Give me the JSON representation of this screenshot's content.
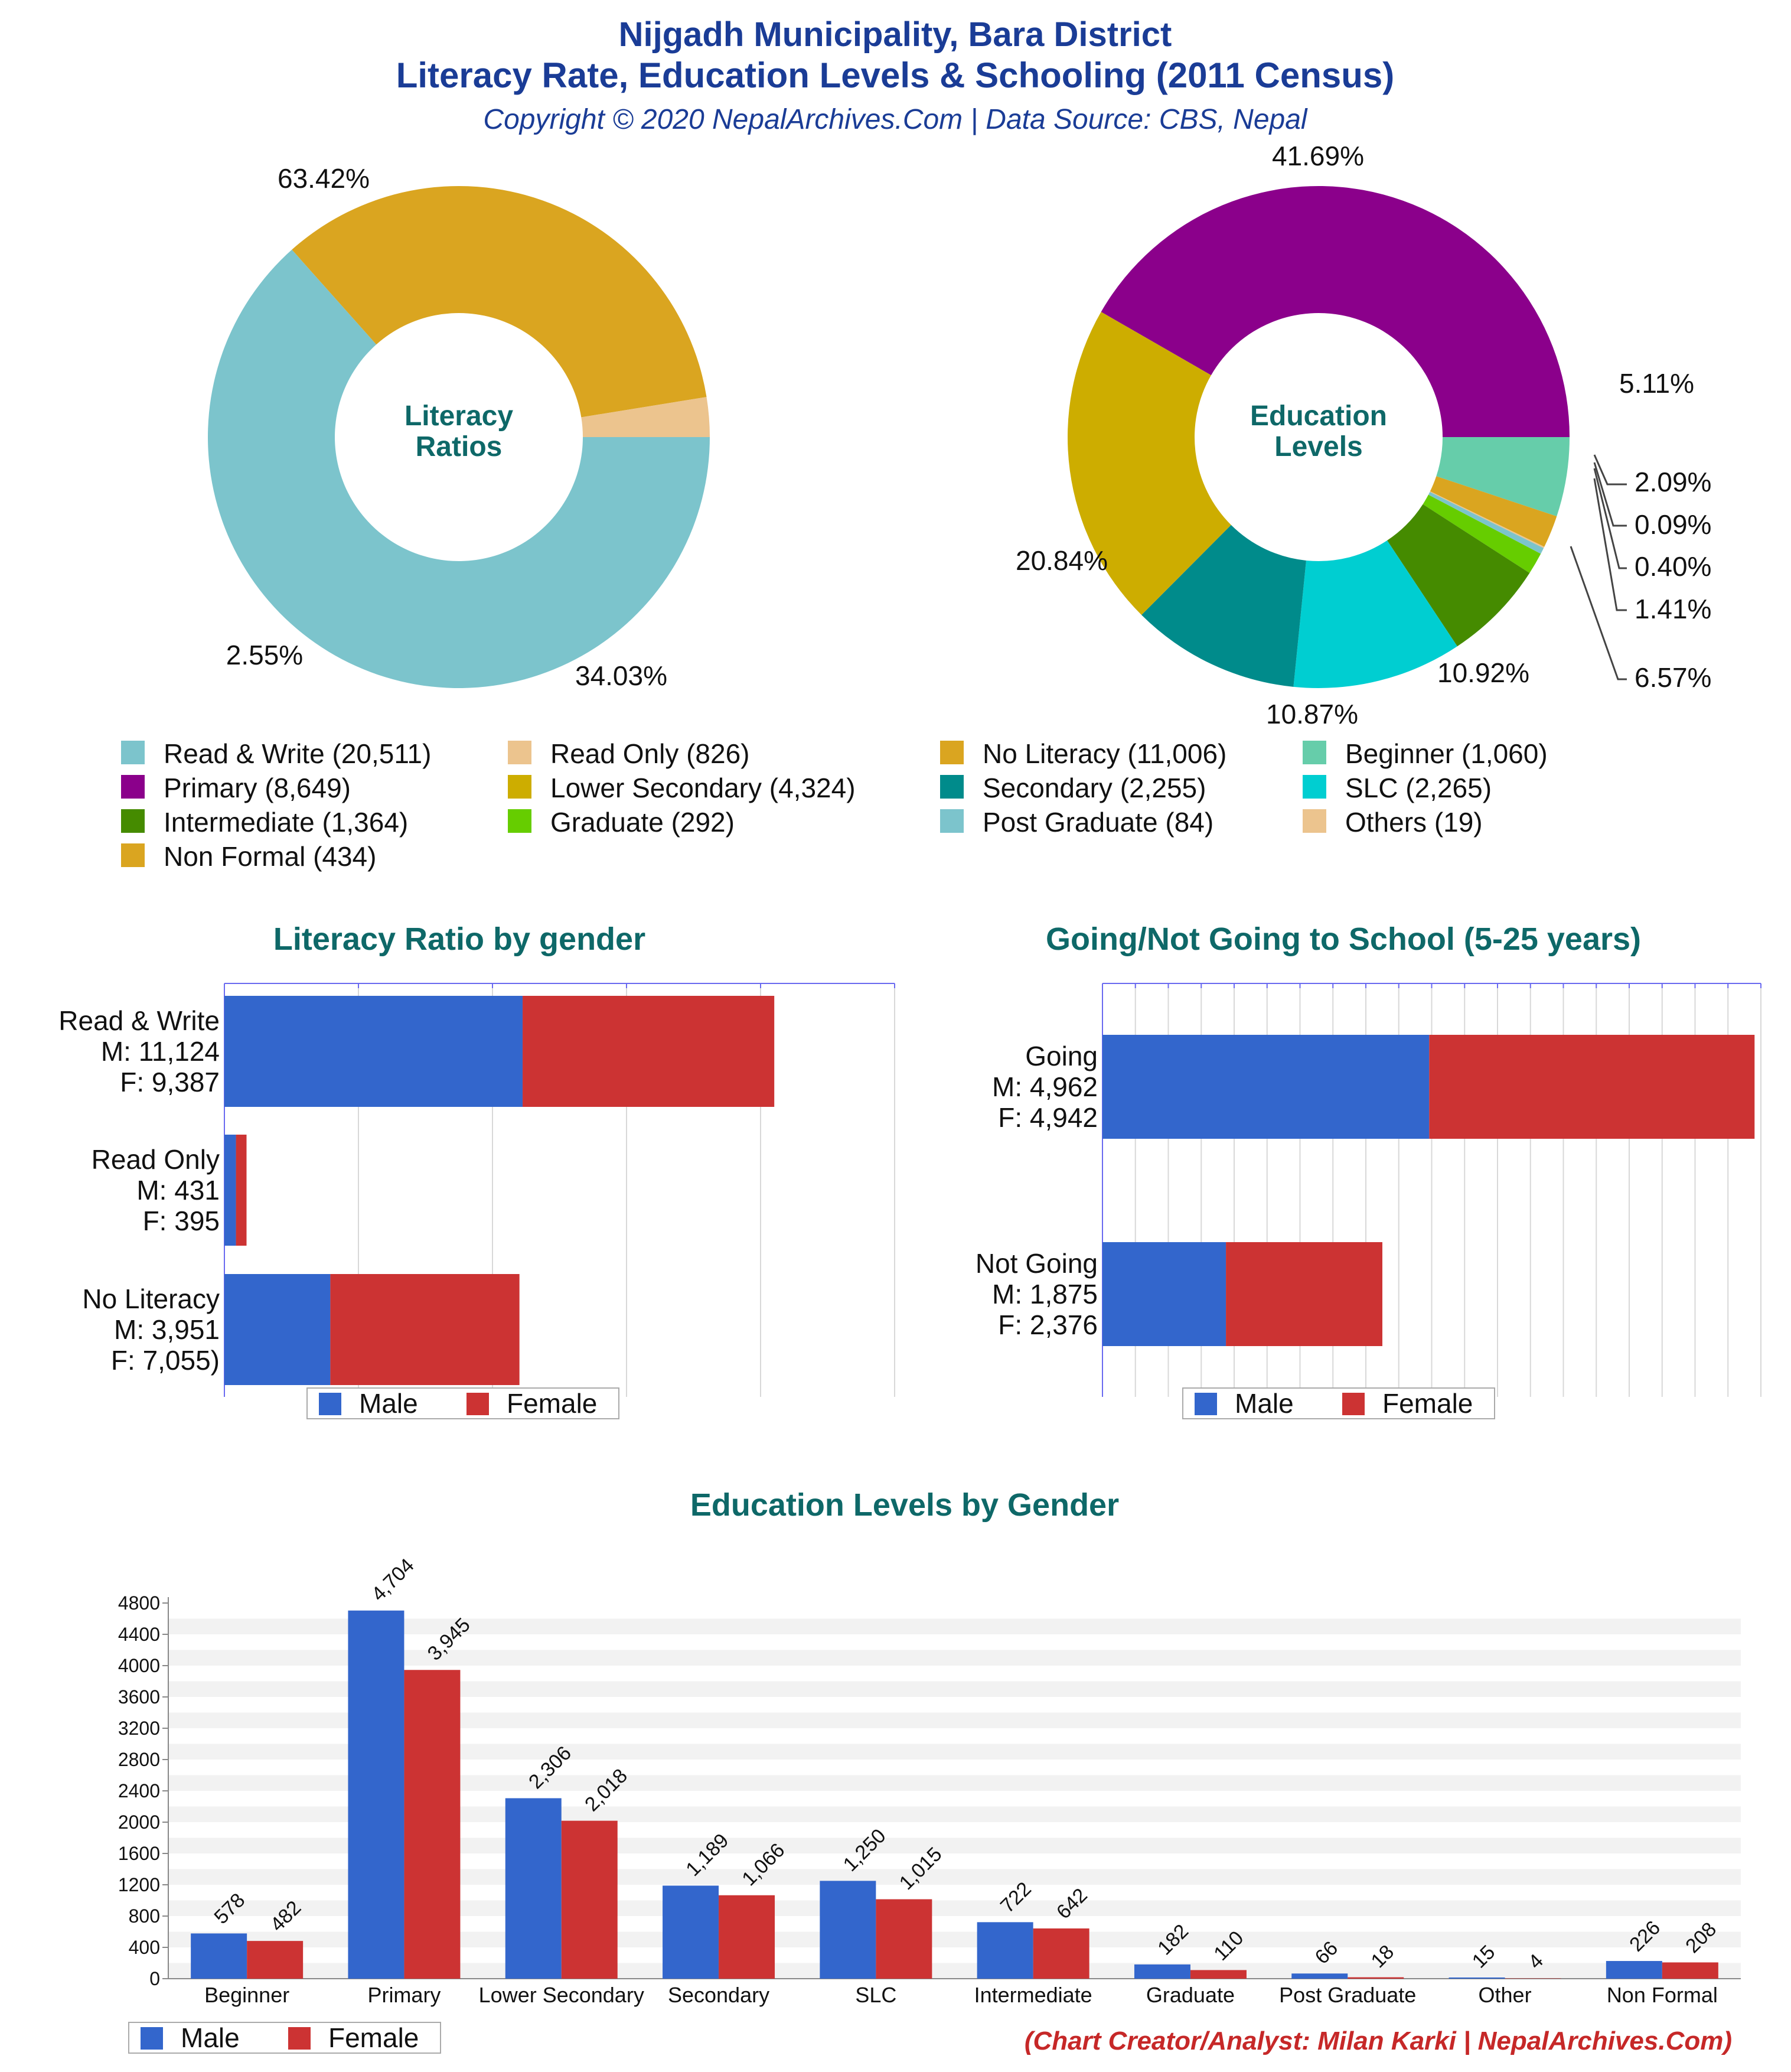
{
  "header": {
    "title_line1": "Nijgadh Municipality, Bara District",
    "title_line2": "Literacy Rate, Education Levels & Schooling (2011 Census)",
    "subtitle": "Copyright © 2020 NepalArchives.Com | Data Source: CBS, Nepal"
  },
  "credit": "(Chart Creator/Analyst: Milan Karki | NepalArchives.Com)",
  "chart_data": [
    {
      "id": "literacy_donut",
      "type": "pie",
      "title": "",
      "center_label": [
        "Literacy",
        "Ratios"
      ],
      "slices": [
        {
          "name": "Read & Write",
          "value": 20511,
          "percent_label": "63.42%",
          "color": "#7cc4cc"
        },
        {
          "name": "No Literacy",
          "value": 11006,
          "percent_label": "34.03%",
          "color": "#daa520"
        },
        {
          "name": "Read Only",
          "value": 826,
          "percent_label": "2.55%",
          "color": "#ecc48e"
        }
      ]
    },
    {
      "id": "education_donut",
      "type": "pie",
      "title": "",
      "center_label": [
        "Education",
        "Levels"
      ],
      "slices": [
        {
          "name": "Primary",
          "value": 8649,
          "percent_label": "41.69%",
          "color": "#8b008b"
        },
        {
          "name": "Beginner",
          "value": 1060,
          "percent_label": "5.11%",
          "color": "#66cdaa"
        },
        {
          "name": "Non Formal",
          "value": 434,
          "percent_label": "2.09%",
          "color": "#daa520"
        },
        {
          "name": "Others",
          "value": 19,
          "percent_label": "0.09%",
          "color": "#ecc48e"
        },
        {
          "name": "Post Graduate",
          "value": 84,
          "percent_label": "0.40%",
          "color": "#7cc4cc"
        },
        {
          "name": "Graduate",
          "value": 292,
          "percent_label": "1.41%",
          "color": "#66cd00"
        },
        {
          "name": "Intermediate",
          "value": 1364,
          "percent_label": "6.57%",
          "color": "#458b00"
        },
        {
          "name": "SLC",
          "value": 2265,
          "percent_label": "10.92%",
          "color": "#00ced1"
        },
        {
          "name": "Secondary",
          "value": 2255,
          "percent_label": "10.87%",
          "color": "#008b8b"
        },
        {
          "name": "Lower Secondary",
          "value": 4324,
          "percent_label": "20.84%",
          "color": "#cdad00"
        }
      ]
    },
    {
      "id": "literacy_by_gender",
      "type": "bar",
      "orientation": "horizontal",
      "stacked": true,
      "title": "Literacy Ratio by gender",
      "categories": [
        {
          "lines": [
            "Read & Write",
            "M: 11,124",
            "F: 9,387"
          ]
        },
        {
          "lines": [
            "Read Only",
            "M: 431",
            "F: 395"
          ]
        },
        {
          "lines": [
            "No Literacy",
            "M: 3,951",
            "F: 7,055)"
          ]
        }
      ],
      "series": [
        {
          "name": "Male",
          "color": "#3366cc",
          "values": [
            11124,
            431,
            3951
          ]
        },
        {
          "name": "Female",
          "color": "#cc3333",
          "values": [
            9387,
            395,
            7055
          ]
        }
      ],
      "xlim": [
        0,
        25000
      ],
      "legend": [
        "Male",
        "Female"
      ]
    },
    {
      "id": "school_going",
      "type": "bar",
      "orientation": "horizontal",
      "stacked": true,
      "title": "Going/Not Going to School (5-25 years)",
      "categories": [
        {
          "lines": [
            "Going",
            "M: 4,962",
            "F: 4,942"
          ]
        },
        {
          "lines": [
            "Not Going",
            "M: 1,875",
            "F: 2,376"
          ]
        }
      ],
      "series": [
        {
          "name": "Male",
          "color": "#3366cc",
          "values": [
            4962,
            1875
          ]
        },
        {
          "name": "Female",
          "color": "#cc3333",
          "values": [
            4942,
            2376
          ]
        }
      ],
      "xlim": [
        0,
        10000
      ],
      "legend": [
        "Male",
        "Female"
      ]
    },
    {
      "id": "education_by_gender",
      "type": "bar",
      "title": "Education Levels by Gender",
      "categories": [
        "Beginner",
        "Primary",
        "Lower Secondary",
        "Secondary",
        "SLC",
        "Intermediate",
        "Graduate",
        "Post Graduate",
        "Other",
        "Non Formal"
      ],
      "series": [
        {
          "name": "Male",
          "color": "#3366cc",
          "values": [
            578,
            4704,
            2306,
            1189,
            1250,
            722,
            182,
            66,
            15,
            226
          ],
          "labels": [
            "578",
            "4,704",
            "2,306",
            "1,189",
            "1,250",
            "722",
            "182",
            "66",
            "15",
            "226"
          ]
        },
        {
          "name": "Female",
          "color": "#cc3333",
          "values": [
            482,
            3945,
            2018,
            1066,
            1015,
            642,
            110,
            18,
            4,
            208
          ],
          "labels": [
            "482",
            "3,945",
            "2,018",
            "1,066",
            "1,015",
            "642",
            "110",
            "18",
            "4",
            "208"
          ]
        }
      ],
      "ylim": [
        0,
        4800
      ],
      "yticks": [
        "0",
        "400",
        "800",
        "1200",
        "1600",
        "2000",
        "2400",
        "2800",
        "3200",
        "3600",
        "4000",
        "4400",
        "4800"
      ],
      "legend": [
        "Male",
        "Female"
      ]
    }
  ],
  "legend_items": [
    {
      "label": "Read & Write (20,511)",
      "color": "#7cc4cc"
    },
    {
      "label": "Read Only (826)",
      "color": "#ecc48e"
    },
    {
      "label": "No Literacy (11,006)",
      "color": "#daa520"
    },
    {
      "label": "Beginner (1,060)",
      "color": "#66cdaa"
    },
    {
      "label": "Primary (8,649)",
      "color": "#8b008b"
    },
    {
      "label": "Lower Secondary (4,324)",
      "color": "#cdad00"
    },
    {
      "label": "Secondary (2,255)",
      "color": "#008b8b"
    },
    {
      "label": "SLC (2,265)",
      "color": "#00ced1"
    },
    {
      "label": "Intermediate (1,364)",
      "color": "#458b00"
    },
    {
      "label": "Graduate (292)",
      "color": "#66cd00"
    },
    {
      "label": "Post Graduate (84)",
      "color": "#7cc4cc"
    },
    {
      "label": "Others (19)",
      "color": "#ecc48e"
    },
    {
      "label": "Non Formal (434)",
      "color": "#daa520"
    }
  ]
}
